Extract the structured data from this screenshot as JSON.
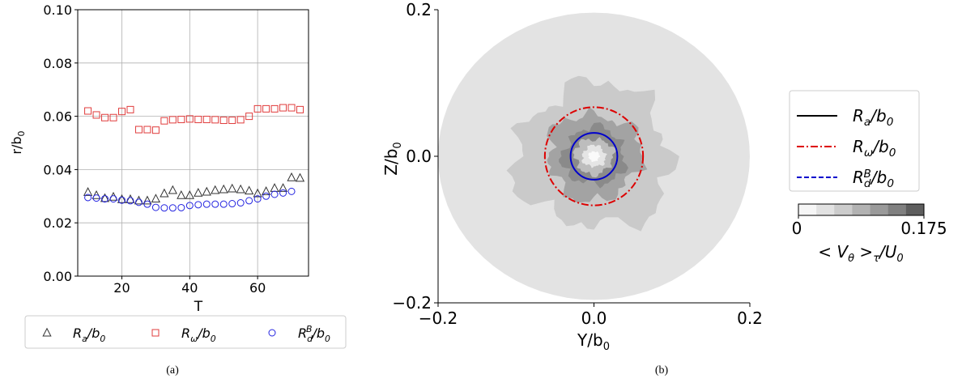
{
  "chart_data": [
    {
      "type": "scatter",
      "panel_label": "(a)",
      "xlabel": "T",
      "ylabel": "r/b",
      "ylabel_sub": "0",
      "xlim": [
        7,
        75
      ],
      "ylim": [
        0.0,
        0.1
      ],
      "xticks": [
        20,
        40,
        60
      ],
      "yticks": [
        "0.00",
        "0.02",
        "0.04",
        "0.06",
        "0.08",
        "0.10"
      ],
      "grid": true,
      "legend_placement": "below",
      "series": [
        {
          "name": "R_a/b_0",
          "legend_main": "R",
          "legend_sub": "a",
          "legend_tail": "/b",
          "legend_tail_sub": "0",
          "marker": "triangle",
          "color": "#333333",
          "x": [
            10,
            12.5,
            15,
            17.5,
            20,
            22.5,
            25,
            27.5,
            30,
            32.5,
            35,
            37.5,
            40,
            42.5,
            45,
            47.5,
            50,
            52.5,
            55,
            57.5,
            60,
            62.5,
            65,
            67.5,
            70,
            72.5
          ],
          "y": [
            0.0315,
            0.0303,
            0.0292,
            0.0297,
            0.0288,
            0.0288,
            0.0283,
            0.0283,
            0.029,
            0.031,
            0.0322,
            0.0303,
            0.0303,
            0.0312,
            0.0316,
            0.0322,
            0.0325,
            0.0328,
            0.0325,
            0.032,
            0.031,
            0.0318,
            0.033,
            0.033,
            0.037,
            0.0368
          ]
        },
        {
          "name": "R_w/b_0",
          "legend_main": "R",
          "legend_sub": "ω",
          "legend_tail": "/b",
          "legend_tail_sub": "0",
          "marker": "square",
          "color": "#e03c3c",
          "x": [
            10,
            12.5,
            15,
            17.5,
            20,
            22.5,
            25,
            27.5,
            30,
            32.5,
            35,
            37.5,
            40,
            42.5,
            45,
            47.5,
            50,
            52.5,
            55,
            57.5,
            60,
            62.5,
            65,
            67.5,
            70,
            72.5
          ],
          "y": [
            0.062,
            0.0605,
            0.0595,
            0.0595,
            0.0618,
            0.0625,
            0.055,
            0.055,
            0.0548,
            0.0583,
            0.0587,
            0.0588,
            0.059,
            0.0588,
            0.0588,
            0.0587,
            0.0585,
            0.0585,
            0.0587,
            0.06,
            0.0628,
            0.0628,
            0.0628,
            0.0632,
            0.0632,
            0.0625
          ]
        },
        {
          "name": "R_d^B/b_0",
          "legend_main": "R",
          "legend_sub": "d",
          "legend_sup": "B",
          "legend_tail": "/b",
          "legend_tail_sub": "0",
          "marker": "circle",
          "color": "#2424e0",
          "x": [
            10,
            12.5,
            15,
            17.5,
            20,
            22.5,
            25,
            27.5,
            30,
            32.5,
            35,
            37.5,
            40,
            42.5,
            45,
            47.5,
            50,
            52.5,
            55,
            57.5,
            60,
            62.5,
            65,
            67.5,
            70
          ],
          "y": [
            0.0295,
            0.0293,
            0.029,
            0.029,
            0.0285,
            0.0283,
            0.0277,
            0.027,
            0.0258,
            0.0256,
            0.0256,
            0.0257,
            0.0265,
            0.0268,
            0.027,
            0.027,
            0.027,
            0.0272,
            0.0275,
            0.0283,
            0.029,
            0.03,
            0.0307,
            0.0312,
            0.0318
          ]
        }
      ]
    },
    {
      "type": "heatmap",
      "subtype": "contour",
      "panel_label": "(b)",
      "xlabel": "Y/b",
      "xlabel_sub": "0",
      "ylabel": "Z/b",
      "ylabel_sub": "0",
      "xlim": [
        -0.2,
        0.2
      ],
      "ylim": [
        -0.2,
        0.2
      ],
      "xticks": [
        "−0.2",
        "0.0",
        "0.2"
      ],
      "yticks": [
        "−0.2",
        "0.0",
        "0.2"
      ],
      "domain_radius": 0.2,
      "contour_levels": [
        {
          "radius": 0.2,
          "color": "#e3e3e3"
        },
        {
          "radius": 0.1,
          "color": "#cacaca"
        },
        {
          "radius": 0.06,
          "color": "#a3a3a3"
        },
        {
          "radius": 0.04,
          "color": "#8a8a8a"
        },
        {
          "radius": 0.025,
          "color": "#bdbdbd"
        },
        {
          "radius": 0.015,
          "color": "#e5e5e5"
        },
        {
          "radius": 0.007,
          "color": "#fafafa"
        }
      ],
      "circles": [
        {
          "name": "R_a/b_0",
          "radius": 0.03,
          "color": "#0000cc",
          "style": "solid"
        },
        {
          "name": "R_w/b_0",
          "radius": 0.063,
          "color": "#dd0000",
          "style": "dashdot"
        }
      ],
      "legend": [
        {
          "main": "R",
          "sub": "a",
          "tail": "/b",
          "tail_sub": "0",
          "color": "#000000",
          "style": "solid"
        },
        {
          "main": "R",
          "sub": "ω",
          "tail": "/b",
          "tail_sub": "0",
          "color": "#dd0000",
          "style": "dashdot"
        },
        {
          "main": "R",
          "sub": "d",
          "sup": "B",
          "tail": "/b",
          "tail_sub": "0",
          "color": "#0000cc",
          "style": "dashed"
        }
      ],
      "colorbar": {
        "min_label": "0",
        "max_label": "0.175",
        "colors": [
          "#f6f6f6",
          "#e2e2e2",
          "#cccccc",
          "#b2b2b2",
          "#9a9a9a",
          "#808080",
          "#5e5e5e"
        ],
        "label": "< V",
        "label_sub": "θ",
        "label_mid": " >",
        "label_sub2": "τ",
        "label_tail": "/U",
        "label_tail_sub": "0"
      }
    }
  ]
}
